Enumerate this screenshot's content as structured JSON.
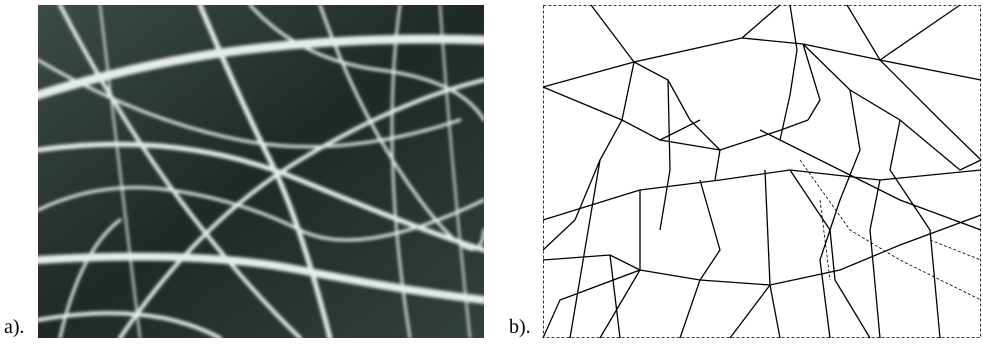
{
  "panels": [
    {
      "label": "a)."
    },
    {
      "label": "b)."
    }
  ]
}
